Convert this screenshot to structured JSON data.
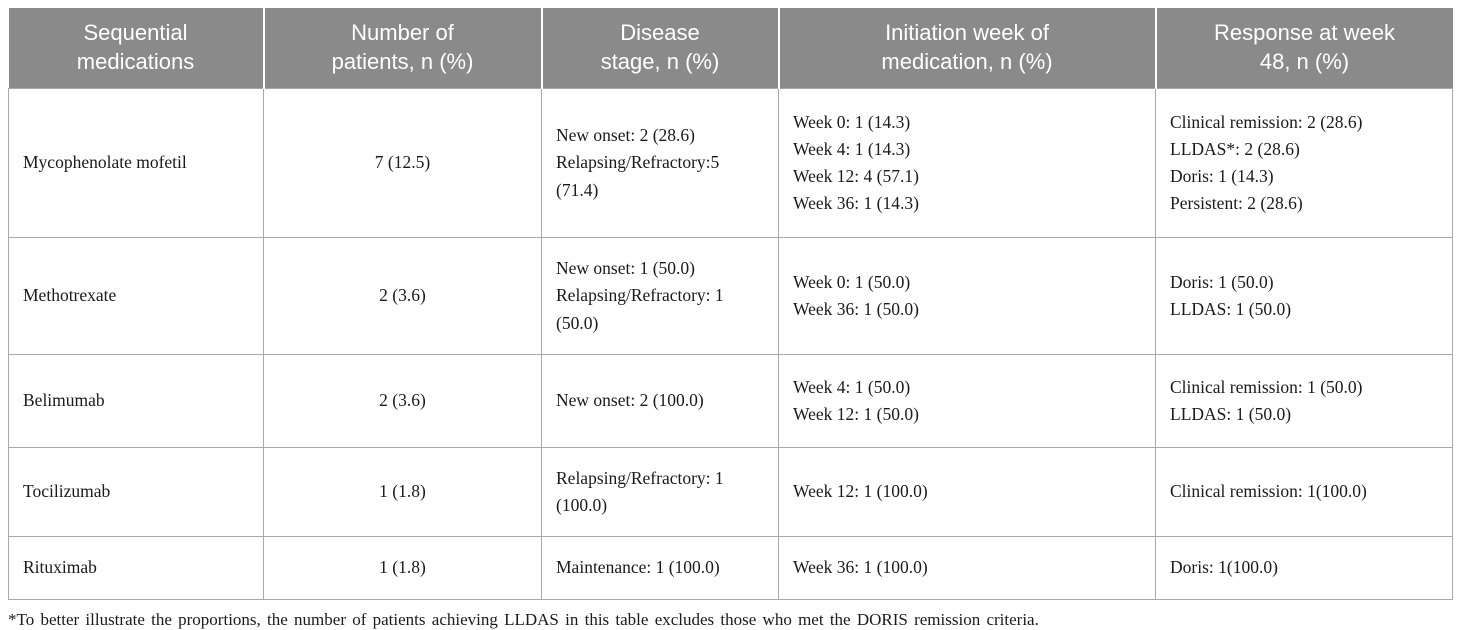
{
  "table": {
    "headers": [
      "Sequential\nmedications",
      "Number of\npatients, n (%)",
      "Disease\nstage, n (%)",
      "Initiation week of\nmedication, n (%)",
      "Response at week\n48, n (%)"
    ],
    "rows": [
      {
        "cells": [
          "Mycophenolate mofetil",
          "7 (12.5)",
          "New onset: 2 (28.6)\nRelapsing/Refractory:5 (71.4)",
          "Week 0: 1 (14.3)\nWeek 4: 1 (14.3)\nWeek 12: 4 (57.1)\nWeek 36: 1 (14.3)",
          "Clinical remission: 2 (28.6)\nLLDAS*: 2 (28.6)\nDoris: 1 (14.3)\nPersistent: 2 (28.6)"
        ]
      },
      {
        "cells": [
          "Methotrexate",
          "2 (3.6)",
          "New onset: 1 (50.0)\nRelapsing/Refractory: 1 (50.0)",
          "Week 0: 1 (50.0)\nWeek 36: 1 (50.0)",
          "Doris: 1 (50.0)\nLLDAS: 1 (50.0)"
        ]
      },
      {
        "cells": [
          "Belimumab",
          "2 (3.6)",
          "New onset: 2 (100.0)",
          "Week 4: 1 (50.0)\nWeek 12: 1 (50.0)",
          "Clinical remission: 1 (50.0)\nLLDAS: 1 (50.0)"
        ]
      },
      {
        "cells": [
          "Tocilizumab",
          "1 (1.8)",
          "Relapsing/Refractory: 1 (100.0)",
          "Week 12: 1 (100.0)",
          "Clinical remission: 1(100.0)"
        ]
      },
      {
        "cells": [
          "Rituximab",
          "1 (1.8)",
          "Maintenance: 1 (100.0)",
          "Week 36: 1 (100.0)",
          "Doris: 1(100.0)"
        ]
      }
    ],
    "footnote": "*To better illustrate the proportions, the number of patients achieving LLDAS in this table excludes those who met the DORIS remission criteria.",
    "colors": {
      "header_bg": "#8a8a8a",
      "header_text": "#ffffff",
      "border": "#a8a8a8",
      "body_text": "#1a1a1a"
    }
  }
}
